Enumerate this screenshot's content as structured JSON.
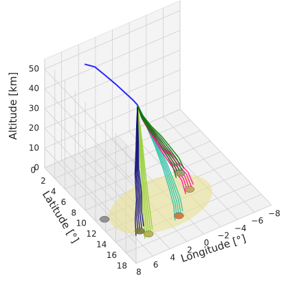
{
  "chart_data": {
    "type": "line",
    "projection": "3d",
    "grid": true,
    "xlabel": "Longitude [°]",
    "ylabel": "Latitude [°]",
    "zlabel": "Altitude [km]",
    "x_ticks": [
      "8",
      "6",
      "4",
      "2",
      "0",
      "−2",
      "−4",
      "−6",
      "−8"
    ],
    "y_ticks": [
      "0",
      "2",
      "4",
      "6",
      "8",
      "10",
      "12",
      "14",
      "16",
      "18"
    ],
    "z_ticks": [
      "0",
      "10",
      "20",
      "30",
      "40",
      "50"
    ],
    "xlim": [
      8,
      -8
    ],
    "ylim": [
      0,
      18
    ],
    "zlim": [
      0,
      55
    ],
    "footprint_color": "#e8e08a",
    "series": [
      {
        "color": "#1a1aff",
        "points": [
          [
            4.9,
            2.7,
            54
          ],
          [
            4.1,
            3.4,
            53
          ],
          [
            3.6,
            4.6,
            51
          ],
          [
            3.1,
            5.9,
            49
          ],
          [
            2.7,
            7.0,
            47
          ],
          [
            2.3,
            7.8,
            45
          ],
          [
            2.0,
            8.3,
            43
          ]
        ]
      },
      {
        "color": "#9ad13b",
        "points": [
          [
            2.0,
            8.3,
            43
          ],
          [
            2.2,
            8.9,
            36
          ],
          [
            2.5,
            9.8,
            28
          ],
          [
            3.0,
            11.0,
            20
          ],
          [
            3.6,
            12.4,
            12
          ],
          [
            4.3,
            14.0,
            6
          ],
          [
            4.6,
            14.8,
            0
          ]
        ]
      },
      {
        "color": "#14147a",
        "points": [
          [
            2.0,
            8.3,
            43
          ],
          [
            2.4,
            8.9,
            36
          ],
          [
            3.0,
            9.9,
            28
          ],
          [
            3.7,
            11.0,
            20
          ],
          [
            4.3,
            12.4,
            12
          ],
          [
            4.9,
            13.3,
            6
          ],
          [
            5.1,
            13.9,
            0
          ]
        ]
      },
      {
        "color": "#2ec4a8",
        "points": [
          [
            2.0,
            8.3,
            43
          ],
          [
            1.6,
            9.2,
            36
          ],
          [
            1.2,
            10.6,
            28
          ],
          [
            0.9,
            11.8,
            20
          ],
          [
            0.7,
            12.9,
            12
          ],
          [
            0.6,
            13.7,
            6
          ],
          [
            0.6,
            14.1,
            0
          ]
        ]
      },
      {
        "color": "#ff1493",
        "points": [
          [
            2.0,
            8.3,
            43
          ],
          [
            1.5,
            8.4,
            36
          ],
          [
            0.6,
            8.8,
            28
          ],
          [
            -0.3,
            9.5,
            20
          ],
          [
            -1.3,
            10.3,
            12
          ],
          [
            -2.1,
            10.8,
            6
          ],
          [
            -2.4,
            11.2,
            0
          ]
        ]
      },
      {
        "color": "#0a7a0a",
        "points": [
          [
            2.0,
            8.3,
            43
          ],
          [
            1.4,
            8.1,
            36
          ],
          [
            0.4,
            8.0,
            28
          ],
          [
            -0.8,
            8.0,
            20
          ],
          [
            -1.8,
            8.1,
            12
          ],
          [
            -2.5,
            8.3,
            6
          ],
          [
            -2.9,
            8.5,
            0
          ]
        ]
      }
    ],
    "landing_markers": [
      {
        "color": "#888888",
        "point": [
          7.1,
          10.3,
          0
        ]
      },
      {
        "color": "#b0b04a",
        "point": [
          4.6,
          14.8,
          0
        ]
      },
      {
        "color": "#7a7a3a",
        "point": [
          5.1,
          13.9,
          0
        ]
      },
      {
        "color": "#d0703a",
        "point": [
          0.6,
          14.1,
          0
        ]
      },
      {
        "color": "#c8a060",
        "point": [
          -2.4,
          11.2,
          0
        ]
      },
      {
        "color": "#a0a060",
        "point": [
          -2.9,
          8.5,
          0
        ]
      }
    ]
  }
}
